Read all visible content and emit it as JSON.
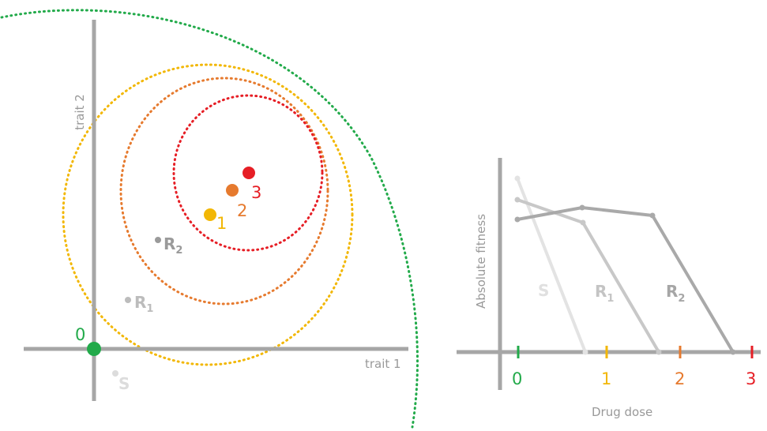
{
  "colors": {
    "axis": "#999999",
    "green": "#22aa4a",
    "yellow": "#f2b705",
    "orange": "#e67a2e",
    "red": "#e61e25",
    "dark_gray": "#9a9a9a",
    "mid_gray": "#bcbcbc",
    "light_gray": "#dcdcdc"
  },
  "left": {
    "x_axis_label": "trait 1",
    "y_axis_label": "trait 2",
    "optima": [
      {
        "label": "0",
        "color": "green"
      },
      {
        "label": "1",
        "color": "yellow"
      },
      {
        "label": "2",
        "color": "orange"
      },
      {
        "label": "3",
        "color": "red"
      }
    ],
    "genotypes": [
      {
        "base": "R",
        "sub": "2",
        "color": "dark_gray"
      },
      {
        "base": "R",
        "sub": "1",
        "color": "mid_gray"
      },
      {
        "base": "S",
        "sub": "",
        "color": "light_gray"
      }
    ]
  },
  "right": {
    "x_axis_label": "Drug dose",
    "y_axis_label": "Absolute fitness",
    "dose_ticks": [
      {
        "label": "0",
        "color": "green"
      },
      {
        "label": "1",
        "color": "yellow"
      },
      {
        "label": "2",
        "color": "orange"
      },
      {
        "label": "3",
        "color": "red"
      }
    ],
    "curves": [
      {
        "base": "S",
        "sub": "",
        "color": "light_gray"
      },
      {
        "base": "R",
        "sub": "1",
        "color": "mid_gray"
      },
      {
        "base": "R",
        "sub": "2",
        "color": "dark_gray"
      }
    ]
  }
}
